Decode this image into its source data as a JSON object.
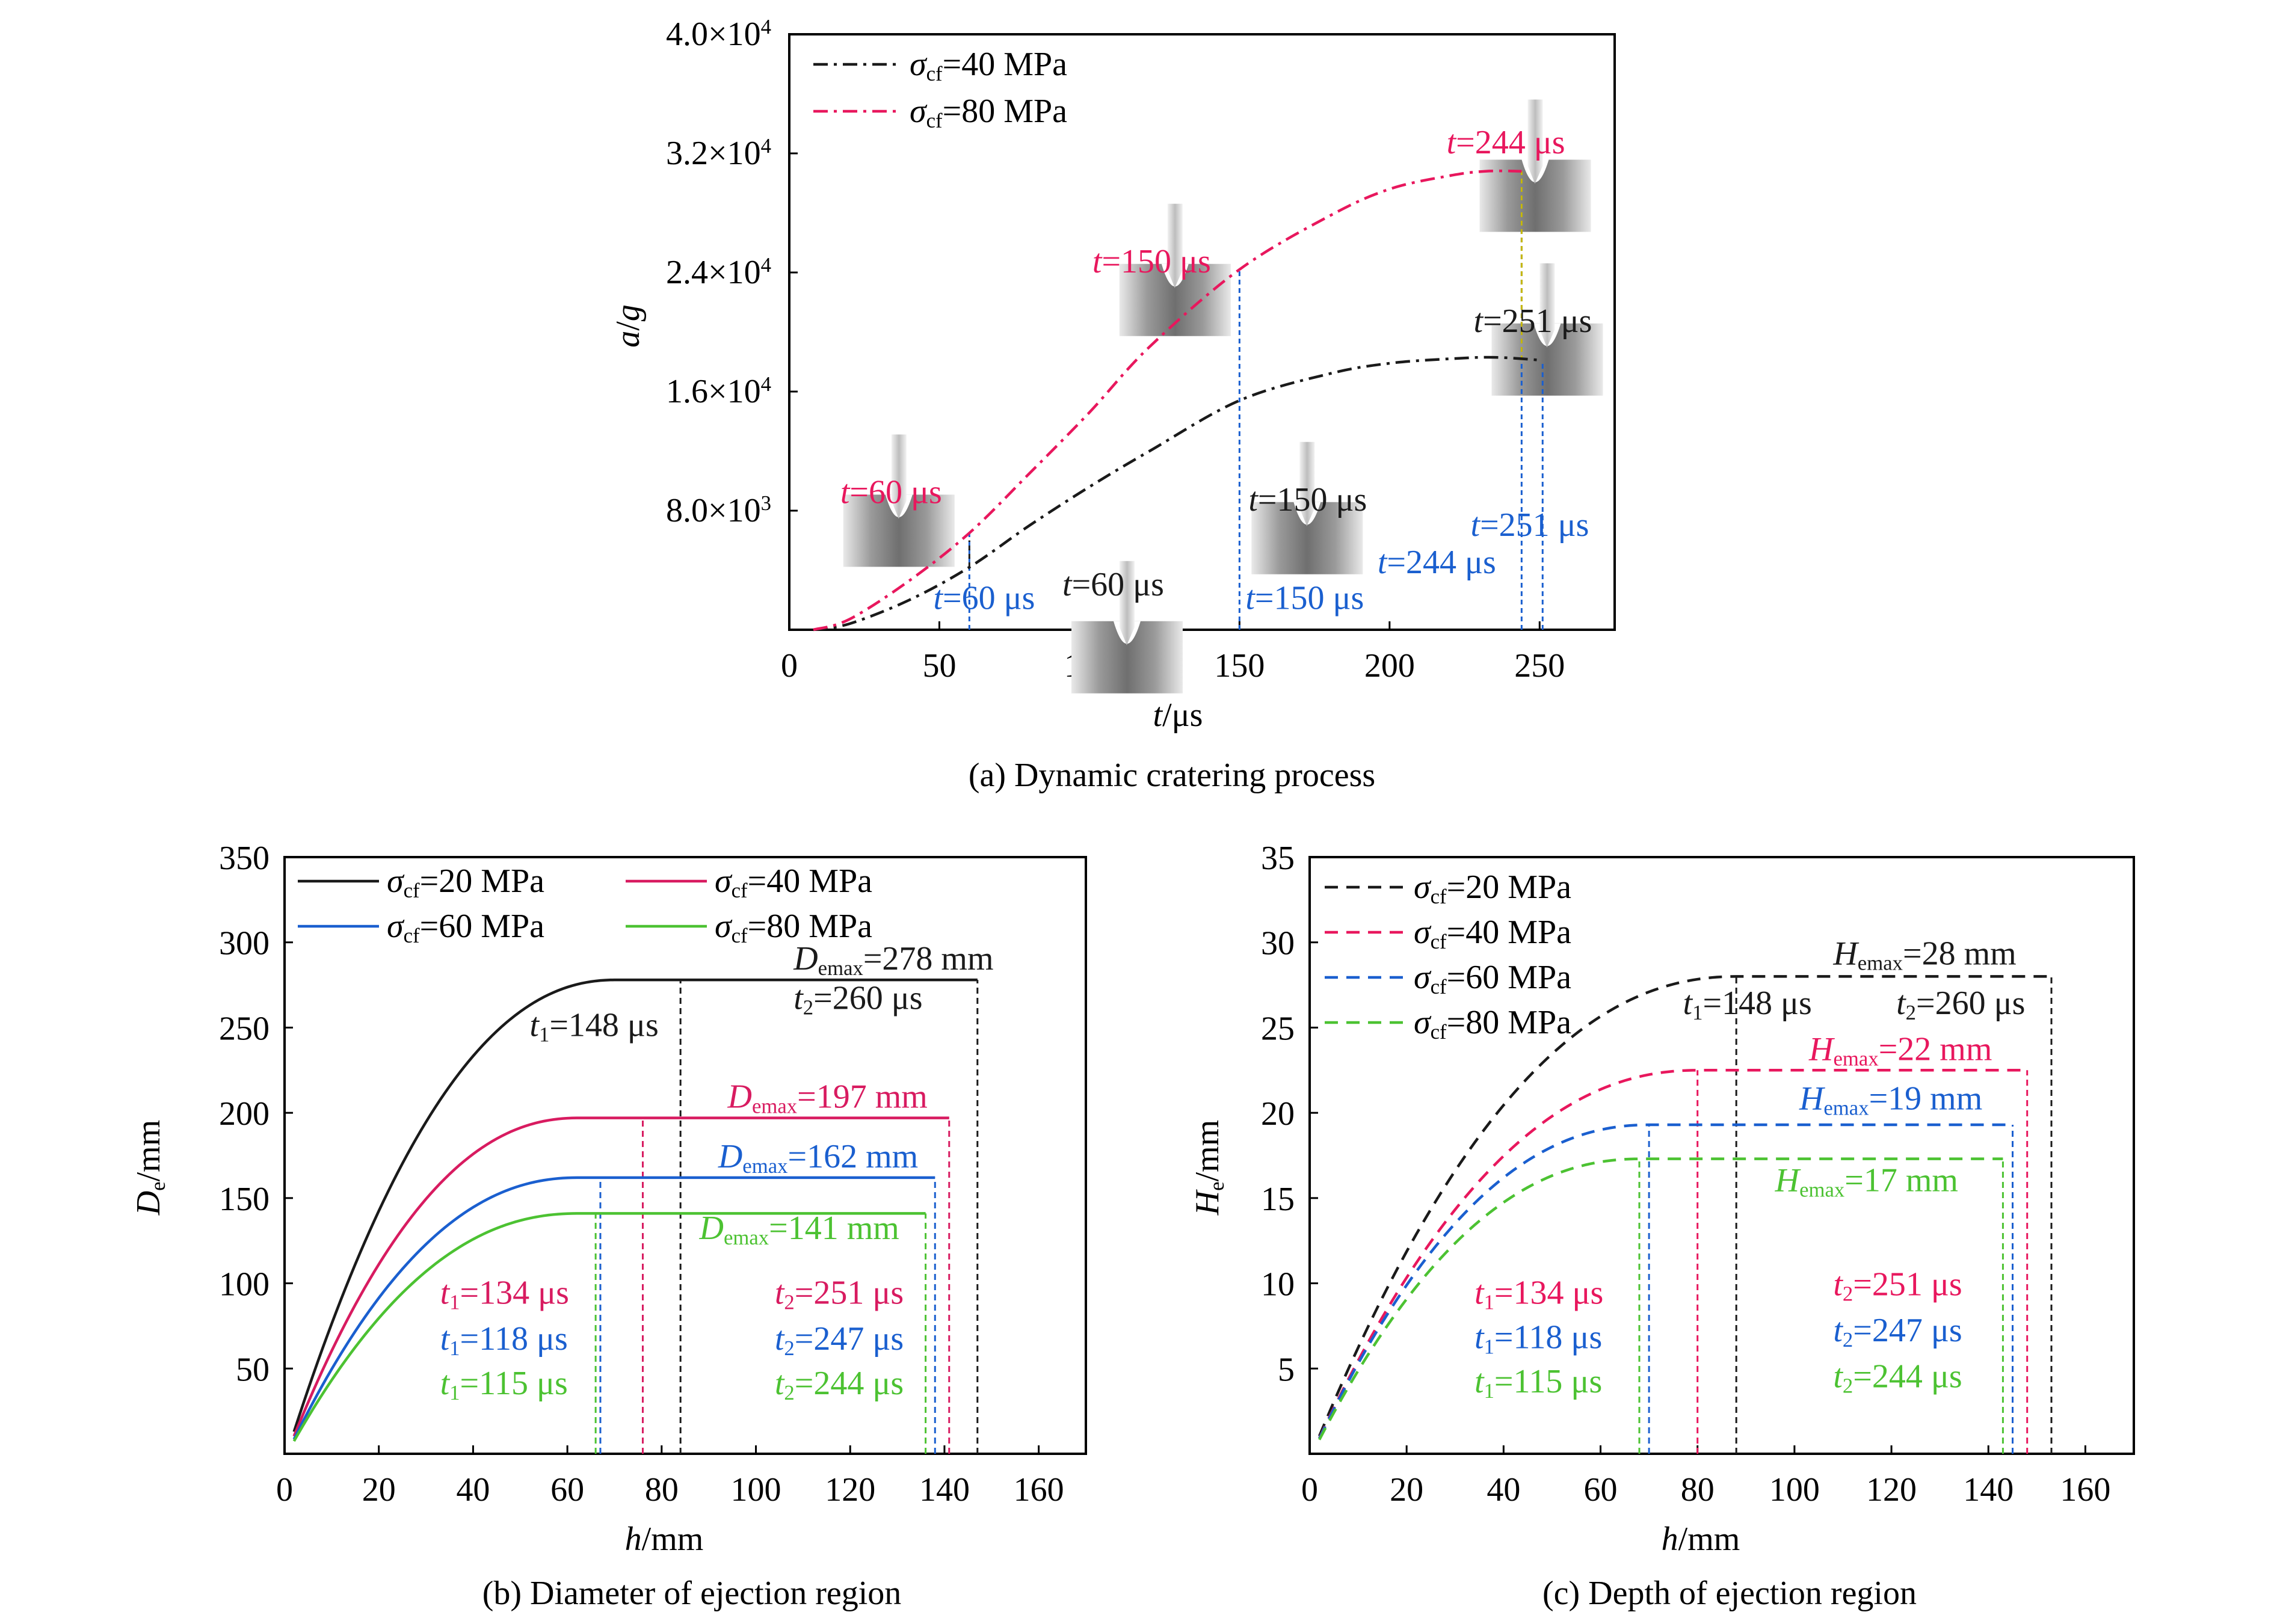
{
  "colors": {
    "black": "#1a1a1a",
    "red": "#e8175d",
    "crimson": "#d81b60",
    "blue": "#1a5fcf",
    "green": "#4cc232",
    "axis": "#000000"
  },
  "chart_data": [
    {
      "id": "a",
      "type": "line",
      "caption": "(a) Dynamic cratering process",
      "xlabel": "t/μs",
      "ylabel": "a/g",
      "xlim": [
        0,
        275
      ],
      "ylim": [
        0,
        40000
      ],
      "xticks": [
        0,
        50,
        100,
        150,
        200,
        250
      ],
      "yticks": [
        {
          "value": 8000,
          "mant": "8.0×10",
          "exp": "3"
        },
        {
          "value": 16000,
          "mant": "1.6×10",
          "exp": "4"
        },
        {
          "value": 24000,
          "mant": "2.4×10",
          "exp": "4"
        },
        {
          "value": 32000,
          "mant": "3.2×10",
          "exp": "4"
        },
        {
          "value": 40000,
          "mant": "4.0×10",
          "exp": "4"
        }
      ],
      "legend_position": "top-left",
      "series": [
        {
          "name": "σcf=40 MPa",
          "sym": "σ",
          "sub": "cf",
          "rest": "=40 MPa",
          "color": "#1a1a1a",
          "dash": "dashdot",
          "x": [
            8,
            20,
            40,
            60,
            80,
            100,
            120,
            150,
            180,
            200,
            220,
            235,
            251
          ],
          "y": [
            0,
            400,
            2000,
            4200,
            7000,
            9600,
            12000,
            15400,
            17200,
            17900,
            18200,
            18300,
            18100
          ]
        },
        {
          "name": "σcf=80 MPa",
          "sym": "σ",
          "sub": "cf",
          "rest": "=80 MPa",
          "color": "#e8175d",
          "dash": "dashdot",
          "x": [
            8,
            20,
            40,
            60,
            80,
            100,
            120,
            150,
            180,
            200,
            220,
            232,
            244
          ],
          "y": [
            0,
            700,
            3300,
            6500,
            10500,
            14600,
            19000,
            24200,
            27800,
            29600,
            30500,
            30800,
            30800
          ]
        }
      ],
      "markers": [
        {
          "t": 60,
          "color": "#1a5fcf",
          "from": 0,
          "to": 6500
        },
        {
          "t": 150,
          "color": "#1a5fcf",
          "from": 0,
          "to": 24200
        },
        {
          "t": 244,
          "color": "#1a5fcf",
          "from": 0,
          "to": 30800
        },
        {
          "t": 251,
          "color": "#1a5fcf",
          "from": 0,
          "to": 18100
        },
        {
          "t": 60,
          "color": "#1a1a1a",
          "from": 4200,
          "to": 6000
        },
        {
          "t": 244,
          "color": "#c9b800",
          "from": 18100,
          "to": 30800
        }
      ],
      "annotations": [
        {
          "it": "t",
          "rest": "=60 μs",
          "color": "#e8175d",
          "x": 17,
          "y": 8500
        },
        {
          "it": "t",
          "rest": "=150 μs",
          "color": "#e8175d",
          "x": 101,
          "y": 24000
        },
        {
          "it": "t",
          "rest": "=244 μs",
          "color": "#e8175d",
          "x": 219,
          "y": 32000
        },
        {
          "it": "t",
          "rest": "=60 μs",
          "color": "#1a1a1a",
          "x": 91,
          "y": 2300
        },
        {
          "it": "t",
          "rest": "=150 μs",
          "color": "#1a1a1a",
          "x": 153,
          "y": 8000
        },
        {
          "it": "t",
          "rest": "=251 μs",
          "color": "#1a1a1a",
          "x": 228,
          "y": 20000
        },
        {
          "it": "t",
          "rest": "=60 μs",
          "color": "#1a5fcf",
          "x": 48,
          "y": 1400
        },
        {
          "it": "t",
          "rest": "=150 μs",
          "color": "#1a5fcf",
          "x": 152,
          "y": 1400
        },
        {
          "it": "t",
          "rest": "=244 μs",
          "color": "#1a5fcf",
          "x": 196,
          "y": 3800
        },
        {
          "it": "t",
          "rest": "=251 μs",
          "color": "#1a5fcf",
          "x": 227,
          "y": 6300
        }
      ],
      "insets": [
        {
          "x": 18,
          "y": 11500
        },
        {
          "x": 94,
          "y": 3000
        },
        {
          "x": 110,
          "y": 27000
        },
        {
          "x": 154,
          "y": 11000
        },
        {
          "x": 230,
          "y": 34000
        },
        {
          "x": 234,
          "y": 23000
        }
      ]
    },
    {
      "id": "b",
      "type": "line",
      "caption": "(b) Diameter of ejection region",
      "xlabel": "h/mm",
      "ylabel": "De/mm",
      "xlim": [
        0,
        170
      ],
      "ylim": [
        0,
        350
      ],
      "xticks": [
        0,
        20,
        40,
        60,
        80,
        100,
        120,
        140,
        160
      ],
      "yticks": [
        50,
        100,
        150,
        200,
        250,
        300,
        350
      ],
      "legend_position": "top-left",
      "series": [
        {
          "name": "σcf=20 MPa",
          "sym": "σ",
          "sub": "cf",
          "rest": "=20 MPa",
          "color": "#1a1a1a",
          "dash": "solid",
          "max": 278,
          "knee": 70,
          "end": 147
        },
        {
          "name": "σcf=40 MPa",
          "sym": "σ",
          "sub": "cf",
          "rest": "=40 MPa",
          "color": "#d81b60",
          "dash": "solid",
          "max": 197,
          "knee": 62,
          "end": 141
        },
        {
          "name": "σcf=60 MPa",
          "sym": "σ",
          "sub": "cf",
          "rest": "=60 MPa",
          "color": "#1a5fcf",
          "dash": "solid",
          "max": 162,
          "knee": 62,
          "end": 138
        },
        {
          "name": "σcf=80 MPa",
          "sym": "σ",
          "sub": "cf",
          "rest": "=80 MPa",
          "color": "#4cc232",
          "dash": "solid",
          "max": 141,
          "knee": 62,
          "end": 136
        }
      ],
      "markers": [
        {
          "x": 84,
          "color": "#1a1a1a",
          "to": 278
        },
        {
          "x": 147,
          "color": "#1a1a1a",
          "to": 278
        },
        {
          "x": 76,
          "color": "#d81b60",
          "to": 197
        },
        {
          "x": 141,
          "color": "#d81b60",
          "to": 197
        },
        {
          "x": 67,
          "color": "#1a5fcf",
          "to": 162
        },
        {
          "x": 138,
          "color": "#1a5fcf",
          "to": 162
        },
        {
          "x": 66,
          "color": "#4cc232",
          "to": 141
        },
        {
          "x": 136,
          "color": "#4cc232",
          "to": 141
        }
      ],
      "annotations": [
        {
          "it": "D",
          "sub": "emax",
          "rest": "=278 mm",
          "color": "#1a1a1a",
          "x": 108,
          "y": 284
        },
        {
          "it": "t",
          "sub": "1",
          "rest": "=148 μs",
          "color": "#1a1a1a",
          "x": 52,
          "y": 245
        },
        {
          "it": "t",
          "sub": "2",
          "rest": "=260 μs",
          "color": "#1a1a1a",
          "x": 108,
          "y": 261
        },
        {
          "it": "D",
          "sub": "emax",
          "rest": "=197 mm",
          "color": "#d81b60",
          "x": 94,
          "y": 203
        },
        {
          "it": "D",
          "sub": "emax",
          "rest": "=162 mm",
          "color": "#1a5fcf",
          "x": 92,
          "y": 168
        },
        {
          "it": "D",
          "sub": "emax",
          "rest": "=141 mm",
          "color": "#4cc232",
          "x": 88,
          "y": 126
        },
        {
          "it": "t",
          "sub": "1",
          "rest": "=134 μs",
          "color": "#d81b60",
          "x": 33,
          "y": 88
        },
        {
          "it": "t",
          "sub": "1",
          "rest": "=118 μs",
          "color": "#1a5fcf",
          "x": 33,
          "y": 61
        },
        {
          "it": "t",
          "sub": "1",
          "rest": "=115 μs",
          "color": "#4cc232",
          "x": 33,
          "y": 35
        },
        {
          "it": "t",
          "sub": "2",
          "rest": "=251 μs",
          "color": "#d81b60",
          "x": 104,
          "y": 88
        },
        {
          "it": "t",
          "sub": "2",
          "rest": "=247 μs",
          "color": "#1a5fcf",
          "x": 104,
          "y": 61
        },
        {
          "it": "t",
          "sub": "2",
          "rest": "=244 μs",
          "color": "#4cc232",
          "x": 104,
          "y": 35
        }
      ]
    },
    {
      "id": "c",
      "type": "line",
      "caption": "(c) Depth of ejection region",
      "xlabel": "h/mm",
      "ylabel": "He/mm",
      "xlim": [
        0,
        170
      ],
      "ylim": [
        0,
        35
      ],
      "xticks": [
        0,
        20,
        40,
        60,
        80,
        100,
        120,
        140,
        160
      ],
      "yticks": [
        5,
        10,
        15,
        20,
        25,
        30,
        35
      ],
      "legend_position": "top-left",
      "series": [
        {
          "name": "σcf=20 MPa",
          "sym": "σ",
          "sub": "cf",
          "rest": "=20 MPa",
          "color": "#1a1a1a",
          "dash": "dashed",
          "max": 28,
          "knee": 88,
          "end": 153
        },
        {
          "name": "σcf=40 MPa",
          "sym": "σ",
          "sub": "cf",
          "rest": "=40 MPa",
          "color": "#e8175d",
          "dash": "dashed",
          "max": 22.5,
          "knee": 80,
          "end": 148
        },
        {
          "name": "σcf=60 MPa",
          "sym": "σ",
          "sub": "cf",
          "rest": "=60 MPa",
          "color": "#1a5fcf",
          "dash": "dashed",
          "max": 19.3,
          "knee": 70,
          "end": 145
        },
        {
          "name": "σcf=80 MPa",
          "sym": "σ",
          "sub": "cf",
          "rest": "=80 MPa",
          "color": "#4cc232",
          "dash": "dashed",
          "max": 17.3,
          "knee": 68,
          "end": 143
        }
      ],
      "markers": [
        {
          "x": 88,
          "color": "#1a1a1a",
          "to": 28
        },
        {
          "x": 153,
          "color": "#1a1a1a",
          "to": 28
        },
        {
          "x": 80,
          "color": "#e8175d",
          "to": 22.5
        },
        {
          "x": 148,
          "color": "#e8175d",
          "to": 22.5
        },
        {
          "x": 70,
          "color": "#1a5fcf",
          "to": 19.3
        },
        {
          "x": 145,
          "color": "#1a5fcf",
          "to": 19.3
        },
        {
          "x": 68,
          "color": "#4cc232",
          "to": 17.3
        },
        {
          "x": 143,
          "color": "#4cc232",
          "to": 17.3
        }
      ],
      "annotations": [
        {
          "it": "H",
          "sub": "emax",
          "rest": "=28 mm",
          "color": "#1a1a1a",
          "x": 108,
          "y": 28.7
        },
        {
          "it": "t",
          "sub": "1",
          "rest": "=148 μs",
          "color": "#1a1a1a",
          "x": 77,
          "y": 25.8
        },
        {
          "it": "t",
          "sub": "2",
          "rest": "=260 μs",
          "color": "#1a1a1a",
          "x": 121,
          "y": 25.8
        },
        {
          "it": "H",
          "sub": "emax",
          "rest": "=22 mm",
          "color": "#e8175d",
          "x": 103,
          "y": 23.1
        },
        {
          "it": "H",
          "sub": "emax",
          "rest": "=19 mm",
          "color": "#1a5fcf",
          "x": 101,
          "y": 20.2
        },
        {
          "it": "H",
          "sub": "emax",
          "rest": "=17 mm",
          "color": "#4cc232",
          "x": 96,
          "y": 15.4
        },
        {
          "it": "t",
          "sub": "1",
          "rest": "=134 μs",
          "color": "#e8175d",
          "x": 34,
          "y": 8.8
        },
        {
          "it": "t",
          "sub": "1",
          "rest": "=118 μs",
          "color": "#1a5fcf",
          "x": 34,
          "y": 6.2
        },
        {
          "it": "t",
          "sub": "1",
          "rest": "=115 μs",
          "color": "#4cc232",
          "x": 34,
          "y": 3.6
        },
        {
          "it": "t",
          "sub": "2",
          "rest": "=251 μs",
          "color": "#e8175d",
          "x": 108,
          "y": 9.3
        },
        {
          "it": "t",
          "sub": "2",
          "rest": "=247 μs",
          "color": "#1a5fcf",
          "x": 108,
          "y": 6.6
        },
        {
          "it": "t",
          "sub": "2",
          "rest": "=244 μs",
          "color": "#4cc232",
          "x": 108,
          "y": 3.9
        }
      ]
    }
  ]
}
